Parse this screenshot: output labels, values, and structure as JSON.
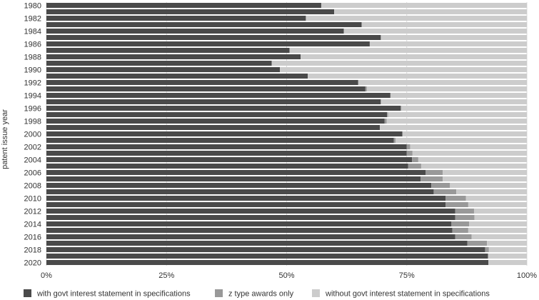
{
  "chart_data": {
    "type": "bar",
    "orientation": "horizontal",
    "stacked": "percent",
    "title": "",
    "xlabel": "",
    "ylabel": "patent issue year",
    "xlim": [
      0,
      100
    ],
    "x_ticks": [
      "0%",
      "25%",
      "50%",
      "75%",
      "100%"
    ],
    "grid": true,
    "legend_position": "bottom",
    "categories": [
      "1980",
      "1981",
      "1982",
      "1983",
      "1984",
      "1985",
      "1986",
      "1987",
      "1988",
      "1989",
      "1990",
      "1991",
      "1992",
      "1993",
      "1994",
      "1995",
      "1996",
      "1997",
      "1998",
      "1999",
      "2000",
      "2001",
      "2002",
      "2003",
      "2004",
      "2005",
      "2006",
      "2007",
      "2008",
      "2009",
      "2010",
      "2011",
      "2012",
      "2013",
      "2014",
      "2015",
      "2016",
      "2017",
      "2018",
      "2019",
      "2020"
    ],
    "category_tick_labels": [
      "1980",
      "1982",
      "1984",
      "1986",
      "1988",
      "1990",
      "1992",
      "1994",
      "1996",
      "1998",
      "2000",
      "2002",
      "2004",
      "2006",
      "2008",
      "2010",
      "2012",
      "2014",
      "2016",
      "2018",
      "2020"
    ],
    "series": [
      {
        "name": "with govt interest statement in specifications",
        "color": "#4a4a4a",
        "values": [
          57.2,
          59.9,
          54.0,
          65.6,
          61.9,
          69.6,
          67.3,
          50.6,
          52.9,
          46.9,
          48.6,
          54.4,
          64.9,
          66.4,
          71.6,
          69.6,
          73.7,
          70.9,
          70.4,
          69.4,
          74.1,
          72.3,
          75.0,
          75.0,
          76.1,
          75.3,
          78.9,
          77.9,
          80.1,
          80.6,
          83.1,
          83.1,
          85.1,
          85.1,
          84.3,
          84.5,
          85.1,
          87.6,
          91.3,
          91.9,
          92.0
        ]
      },
      {
        "name": "z type awards only",
        "color": "#999999",
        "values": [
          0,
          0,
          0,
          0,
          0,
          0,
          0,
          0,
          0,
          0,
          0,
          0,
          0,
          0.3,
          0,
          0,
          0.2,
          0.2,
          0.4,
          0,
          0,
          0.4,
          0.7,
          1.2,
          1.3,
          2.7,
          3.6,
          4.6,
          3.9,
          4.7,
          4.2,
          4.7,
          3.9,
          4.0,
          3.7,
          3.3,
          3.4,
          4.1,
          0.8,
          0,
          0
        ]
      },
      {
        "name": "without govt interest statement in specifications",
        "color": "#cccccc",
        "values": [
          42.8,
          40.1,
          46.0,
          34.4,
          38.1,
          30.4,
          32.7,
          49.4,
          47.1,
          53.1,
          51.4,
          45.6,
          35.1,
          33.3,
          28.4,
          30.4,
          26.1,
          28.9,
          29.2,
          30.6,
          25.9,
          27.3,
          24.3,
          23.8,
          22.6,
          22.0,
          17.5,
          17.5,
          16.0,
          14.7,
          12.7,
          12.2,
          11.0,
          10.9,
          12.0,
          12.2,
          11.5,
          8.3,
          7.9,
          8.1,
          8.0
        ]
      }
    ]
  }
}
